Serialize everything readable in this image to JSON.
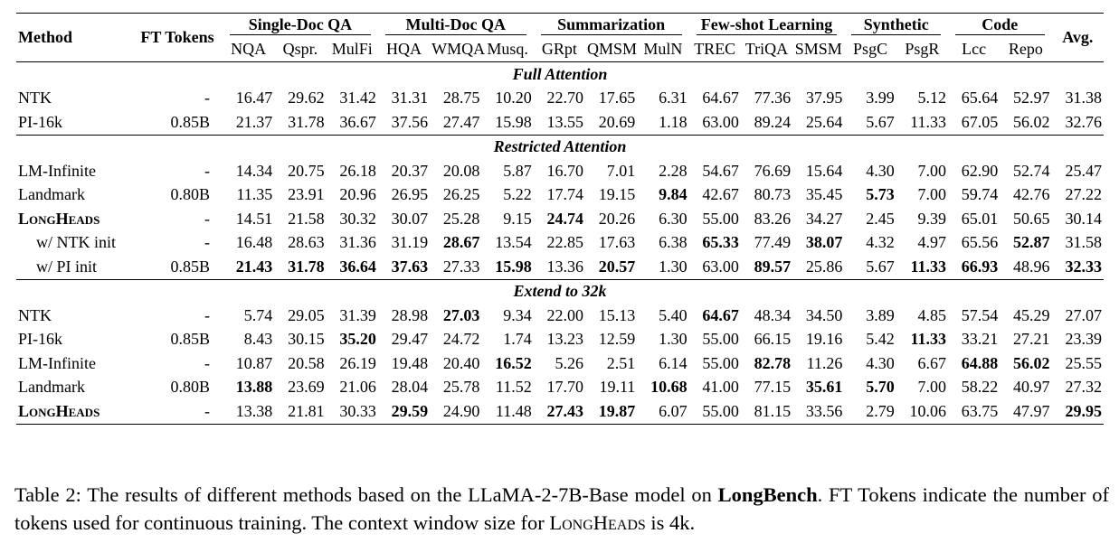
{
  "header": {
    "method": "Method",
    "ft_tokens": "FT Tokens",
    "avg": "Avg.",
    "groups": [
      {
        "name": "Single-Doc QA",
        "cols": [
          "NQA",
          "Qspr.",
          "MulFi"
        ]
      },
      {
        "name": "Multi-Doc QA",
        "cols": [
          "HQA",
          "WMQA",
          "Musq."
        ]
      },
      {
        "name": "Summarization",
        "cols": [
          "GRpt",
          "QMSM",
          "MulN"
        ]
      },
      {
        "name": "Few-shot Learning",
        "cols": [
          "TREC",
          "TriQA",
          "SMSM"
        ]
      },
      {
        "name": "Synthetic",
        "cols": [
          "PsgC",
          "PsgR"
        ]
      },
      {
        "name": "Code",
        "cols": [
          "Lcc",
          "Repo"
        ]
      }
    ]
  },
  "sections": [
    {
      "title": "Full Attention",
      "rows": [
        {
          "method": "NTK",
          "ft": "-",
          "values": [
            "16.47",
            "29.62",
            "31.42",
            "31.31",
            "28.75",
            "10.20",
            "22.70",
            "17.65",
            "6.31",
            "64.67",
            "77.36",
            "37.95",
            "3.99",
            "5.12",
            "65.64",
            "52.97",
            "31.38"
          ],
          "bold": []
        },
        {
          "method": "PI-16k",
          "ft": "0.85B",
          "values": [
            "21.37",
            "31.78",
            "36.67",
            "37.56",
            "27.47",
            "15.98",
            "13.55",
            "20.69",
            "1.18",
            "63.00",
            "89.24",
            "25.64",
            "5.67",
            "11.33",
            "67.05",
            "56.02",
            "32.76"
          ],
          "bold": []
        }
      ]
    },
    {
      "title": "Restricted Attention",
      "rows": [
        {
          "method": "LM-Infinite",
          "ft": "-",
          "values": [
            "14.34",
            "20.75",
            "26.18",
            "20.37",
            "20.08",
            "5.87",
            "16.70",
            "7.01",
            "2.28",
            "54.67",
            "76.69",
            "15.64",
            "4.30",
            "7.00",
            "62.90",
            "52.74",
            "25.47"
          ],
          "bold": []
        },
        {
          "method": "Landmark",
          "ft": "0.80B",
          "values": [
            "11.35",
            "23.91",
            "20.96",
            "26.95",
            "26.25",
            "5.22",
            "17.74",
            "19.15",
            "9.84",
            "42.67",
            "80.73",
            "35.45",
            "5.73",
            "7.00",
            "59.74",
            "42.76",
            "27.22"
          ],
          "bold": [
            8,
            12
          ]
        },
        {
          "method": "LongHeads",
          "small_caps": true,
          "ft": "-",
          "values": [
            "14.51",
            "21.58",
            "30.32",
            "30.07",
            "25.28",
            "9.15",
            "24.74",
            "20.26",
            "6.30",
            "55.00",
            "83.26",
            "34.27",
            "2.45",
            "9.39",
            "65.01",
            "50.65",
            "30.14"
          ],
          "bold": [
            6
          ]
        },
        {
          "method": "w/ NTK init",
          "indent": true,
          "ft": "-",
          "values": [
            "16.48",
            "28.63",
            "31.36",
            "31.19",
            "28.67",
            "13.54",
            "22.85",
            "17.63",
            "6.38",
            "65.33",
            "77.49",
            "38.07",
            "4.32",
            "4.97",
            "65.56",
            "52.87",
            "31.58"
          ],
          "bold": [
            4,
            9,
            11,
            15
          ]
        },
        {
          "method": "w/ PI init",
          "indent": true,
          "ft": "0.85B",
          "values": [
            "21.43",
            "31.78",
            "36.64",
            "37.63",
            "27.33",
            "15.98",
            "13.36",
            "20.57",
            "1.30",
            "63.00",
            "89.57",
            "25.86",
            "5.67",
            "11.33",
            "66.93",
            "48.96",
            "32.33"
          ],
          "bold": [
            0,
            1,
            2,
            3,
            5,
            7,
            10,
            13,
            14,
            16
          ]
        }
      ]
    },
    {
      "title": "Extend to 32k",
      "rows": [
        {
          "method": "NTK",
          "ft": "-",
          "values": [
            "5.74",
            "29.05",
            "31.39",
            "28.98",
            "27.03",
            "9.34",
            "22.00",
            "15.13",
            "5.40",
            "64.67",
            "48.34",
            "34.50",
            "3.89",
            "4.85",
            "57.54",
            "45.29",
            "27.07"
          ],
          "bold": [
            4,
            9
          ]
        },
        {
          "method": "PI-16k",
          "ft": "0.85B",
          "values": [
            "8.43",
            "30.15",
            "35.20",
            "29.47",
            "24.72",
            "1.74",
            "13.23",
            "12.59",
            "1.30",
            "55.00",
            "66.15",
            "19.16",
            "5.42",
            "11.33",
            "33.21",
            "27.21",
            "23.39"
          ],
          "bold": [
            2,
            13
          ]
        },
        {
          "method": "LM-Infinite",
          "ft": "-",
          "values": [
            "10.87",
            "20.58",
            "26.19",
            "19.48",
            "20.40",
            "16.52",
            "5.26",
            "2.51",
            "6.14",
            "55.00",
            "82.78",
            "11.26",
            "4.30",
            "6.67",
            "64.88",
            "56.02",
            "25.55"
          ],
          "bold": [
            5,
            10,
            14,
            15
          ]
        },
        {
          "method": "Landmark",
          "ft": "0.80B",
          "values": [
            "13.88",
            "23.69",
            "21.06",
            "28.04",
            "25.78",
            "11.52",
            "17.70",
            "19.11",
            "10.68",
            "41.00",
            "77.15",
            "35.61",
            "5.70",
            "7.00",
            "58.22",
            "40.97",
            "27.32"
          ],
          "bold": [
            0,
            8,
            11,
            12
          ]
        },
        {
          "method": "LongHeads",
          "small_caps": true,
          "ft": "-",
          "values": [
            "13.38",
            "21.81",
            "30.33",
            "29.59",
            "24.90",
            "11.48",
            "27.43",
            "19.87",
            "6.07",
            "55.00",
            "81.15",
            "33.56",
            "2.79",
            "10.06",
            "63.75",
            "47.97",
            "29.95"
          ],
          "bold": [
            3,
            6,
            7,
            16
          ]
        }
      ]
    }
  ],
  "caption": {
    "text_1": "Table 2: The results of different methods based on the LLaMA-2-7B-Base model on ",
    "bold": "LongBench",
    "text_2": ". FT Tokens indicate the number of tokens used for continuous training. The context window size for ",
    "small_caps": "LongHeads",
    "text_3": " is 4k."
  }
}
